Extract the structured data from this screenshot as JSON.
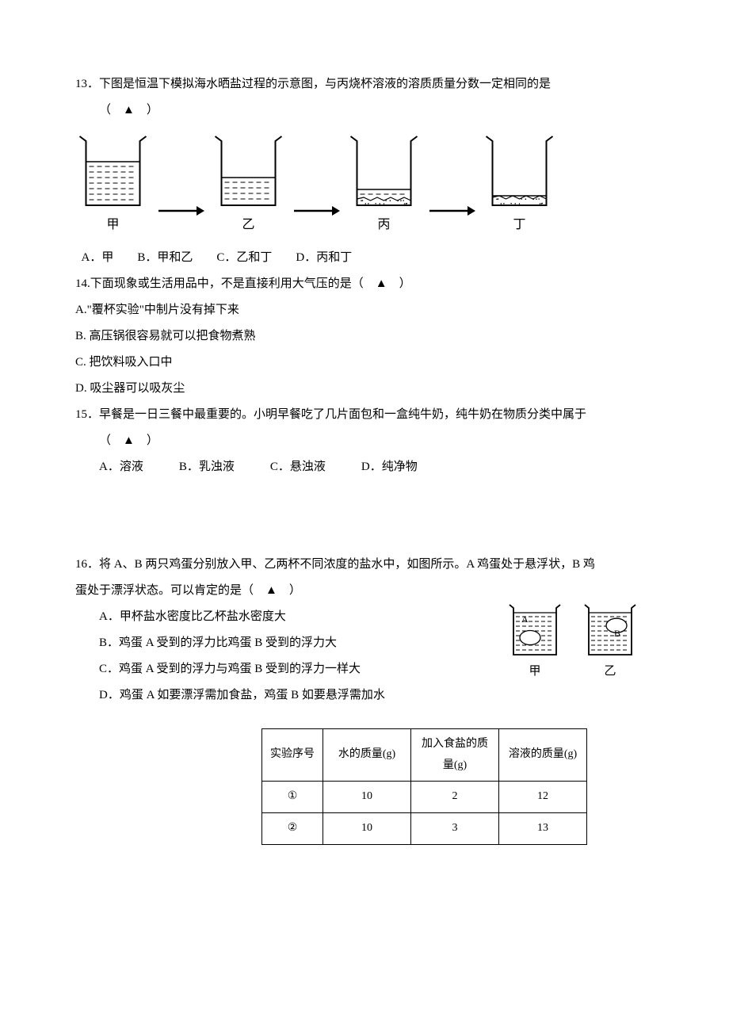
{
  "q13": {
    "number": "13．",
    "text": "下图是恒温下模拟海水晒盐过程的示意图，与丙烧杯溶液的溶质质量分数一定相同的是",
    "blank": "（　▲　）",
    "beakers": [
      {
        "label": "甲",
        "waterHeight": 55,
        "sedimentHeight": 0,
        "hatchLines": 7
      },
      {
        "label": "乙",
        "waterHeight": 35,
        "sedimentHeight": 0,
        "hatchLines": 5
      },
      {
        "label": "丙",
        "waterHeight": 20,
        "sedimentHeight": 8,
        "hatchLines": 2
      },
      {
        "label": "丁",
        "waterHeight": 12,
        "sedimentHeight": 10,
        "hatchLines": 0
      }
    ],
    "options": {
      "A": "A．甲",
      "B": "B．甲和乙",
      "C": "C．乙和丁",
      "D": "D．丙和丁"
    }
  },
  "q14": {
    "number": "14.",
    "text": "下面现象或生活用品中，不是直接利用大气压的是（　▲　）",
    "options": {
      "A": "A.\"覆杯实验\"中制片没有掉下来",
      "B": "B. 高压锅很容易就可以把食物煮熟",
      "C": "C. 把饮料吸入口中",
      "D": "D. 吸尘器可以吸灰尘"
    }
  },
  "q15": {
    "number": "15．",
    "text": "早餐是一日三餐中最重要的。小明早餐吃了几片面包和一盒纯牛奶，纯牛奶在物质分类中属于",
    "blank": "（　▲　）",
    "options": {
      "A": "A．溶液",
      "B": "B．乳浊液",
      "C": "C．悬浊液",
      "D": "D．纯净物"
    }
  },
  "q16": {
    "number": "16．",
    "text1": "将 A、B 两只鸡蛋分别放入甲、乙两杯不同浓度的盐水中，如图所示。A 鸡蛋处于悬浮状，B 鸡",
    "text2": "蛋处于漂浮状态。可以肯定的是（　▲　）",
    "options": {
      "A": "A．甲杯盐水密度比乙杯盐水密度大",
      "B": "B．鸡蛋 A 受到的浮力比鸡蛋 B 受到的浮力大",
      "C": "C．鸡蛋 A 受到的浮力与鸡蛋 B 受到的浮力一样大",
      "D": "D．鸡蛋 A 如要漂浮需加食盐，鸡蛋 B 如要悬浮需加水"
    },
    "figures": [
      {
        "label": "甲",
        "eggLabel": "A",
        "eggY": 35
      },
      {
        "label": "乙",
        "eggLabel": "B",
        "eggY": 18
      }
    ]
  },
  "table": {
    "headers": [
      "实验序号",
      "水的质量(g)",
      "加入食盐的质量(g)",
      "溶液的质量(g)"
    ],
    "rows": [
      [
        "①",
        "10",
        "2",
        "12"
      ],
      [
        "②",
        "10",
        "3",
        "13"
      ]
    ]
  },
  "colors": {
    "stroke": "#000000",
    "background": "#ffffff"
  }
}
